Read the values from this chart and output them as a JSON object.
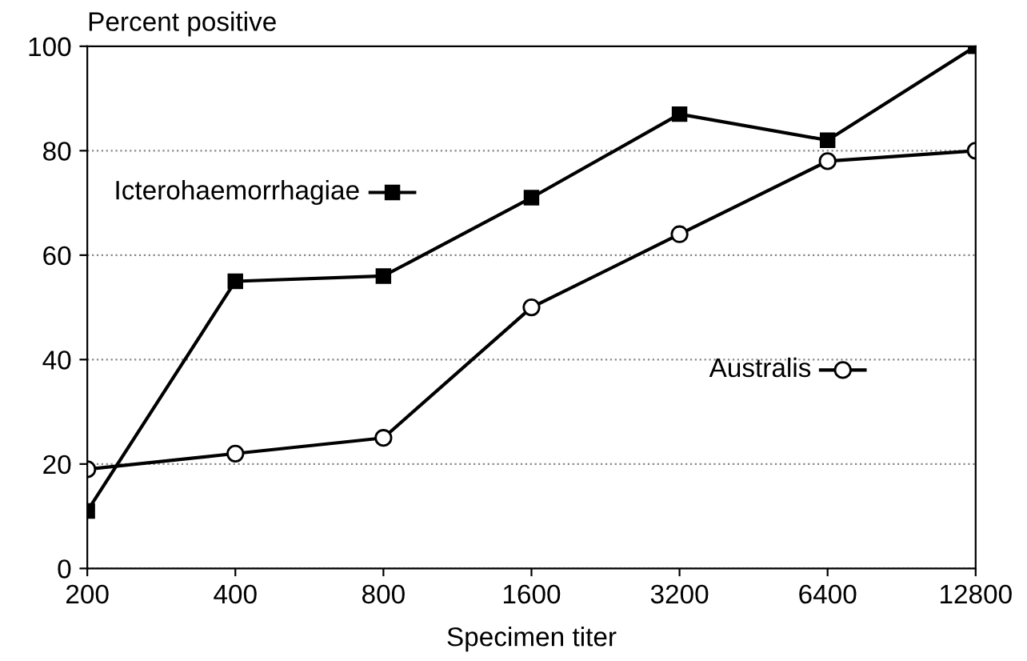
{
  "chart_data": {
    "type": "line",
    "xlabel": "Specimen titer",
    "ylabel": "Percent positive",
    "categories": [
      "200",
      "400",
      "800",
      "1600",
      "3200",
      "6400",
      "12800"
    ],
    "series": [
      {
        "name": "Icterohaemorrhagiae",
        "color": "#000000",
        "marker": "square",
        "values": [
          11,
          55,
          56,
          71,
          87,
          82,
          100
        ]
      },
      {
        "name": "Australis",
        "color": "#000000",
        "marker": "circle",
        "values": [
          19,
          22,
          25,
          50,
          64,
          78,
          80
        ]
      }
    ],
    "ylim": [
      0,
      100
    ],
    "yticks": [
      0,
      20,
      40,
      60,
      80,
      100
    ],
    "grid": "y",
    "legend": "left",
    "line_style": "solid"
  }
}
